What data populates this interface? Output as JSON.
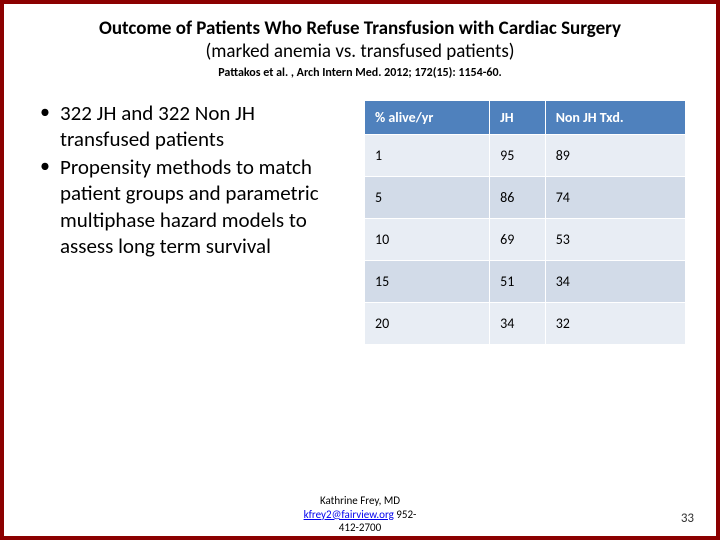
{
  "header": {
    "title": "Outcome of Patients Who Refuse Transfusion with Cardiac Surgery",
    "subtitle": "(marked anemia vs. transfused patients)",
    "citation": "Pattakos et al. , Arch Intern Med. 2012; 172(15): 1154-60."
  },
  "bullets": [
    "322 JH and 322 Non JH transfused patients",
    "Propensity methods to match patient groups and parametric multiphase hazard models to assess long term survival"
  ],
  "table": {
    "columns": [
      "% alive/yr",
      "JH",
      "Non JH Txd."
    ],
    "rows": [
      [
        "1",
        "95",
        "89"
      ],
      [
        "5",
        "86",
        "74"
      ],
      [
        "10",
        "69",
        "53"
      ],
      [
        "15",
        "51",
        "34"
      ],
      [
        "20",
        "34",
        "32"
      ]
    ],
    "header_bg": "#4f81bd",
    "header_fg": "#ffffff",
    "row_odd_bg": "#e8edf4",
    "row_even_bg": "#d2dbe8",
    "font_size": 14
  },
  "footer": {
    "author": "Kathrine Frey, MD",
    "email": "kfrey2@fairview.org",
    "phone_part1": " 952-",
    "phone_part2": "412-2700"
  },
  "slide_number": "33",
  "border_color": "#8b0000"
}
